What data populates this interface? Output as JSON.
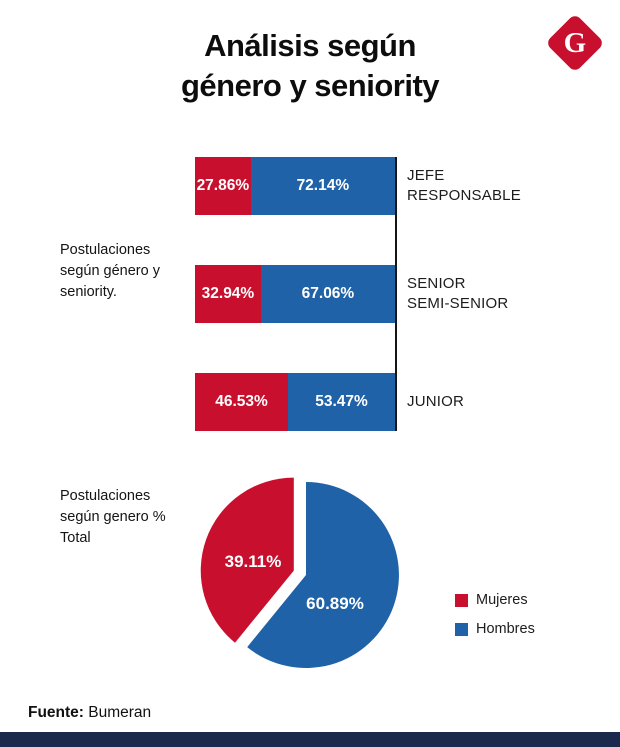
{
  "header": {
    "title_line1": "Análisis según",
    "title_line2": "género y seniority",
    "logo_letter": "G"
  },
  "colors": {
    "mujeres": "#C8102E",
    "hombres": "#1F62A8",
    "bottom_bar": "#1B2A4C"
  },
  "bars_section": {
    "caption": "Postulaciones según género y seniority.",
    "rows": [
      {
        "lines": [
          "JEFE",
          "RESPONSABLE"
        ],
        "mujeres": "27.86%",
        "hombres": "72.14%"
      },
      {
        "lines": [
          "SENIOR",
          "SEMI-SENIOR"
        ],
        "mujeres": "32.94%",
        "hombres": "67.06%"
      },
      {
        "lines": [
          "JUNIOR"
        ],
        "mujeres": "46.53%",
        "hombres": "53.47%"
      }
    ]
  },
  "pie_section": {
    "caption": "Postulaciones según genero % Total",
    "mujeres_pct": "39.11%",
    "hombres_pct": "60.89%",
    "legend": [
      "Mujeres",
      "Hombres"
    ]
  },
  "footer": {
    "source_label": "Fuente:",
    "source_value": "Bumeran"
  },
  "chart_data": [
    {
      "type": "bar",
      "orientation": "horizontal",
      "stacked": true,
      "categories": [
        "JEFE RESPONSABLE",
        "SENIOR SEMI-SENIOR",
        "JUNIOR"
      ],
      "series": [
        {
          "name": "Mujeres",
          "values": [
            27.86,
            32.94,
            46.53
          ],
          "color": "#C8102E"
        },
        {
          "name": "Hombres",
          "values": [
            72.14,
            67.06,
            53.47
          ],
          "color": "#1F62A8"
        }
      ],
      "title": "Postulaciones según género y seniority.",
      "unit": "%",
      "xlim": [
        0,
        100
      ],
      "grid": false,
      "legend_position": "none"
    },
    {
      "type": "pie",
      "labels": [
        "Mujeres",
        "Hombres"
      ],
      "values": [
        39.11,
        60.89
      ],
      "colors": [
        "#C8102E",
        "#1F62A8"
      ],
      "title": "Postulaciones según genero % Total",
      "legend_position": "right",
      "exploded_slice": "Mujeres",
      "start_angle_deg": 0
    }
  ]
}
